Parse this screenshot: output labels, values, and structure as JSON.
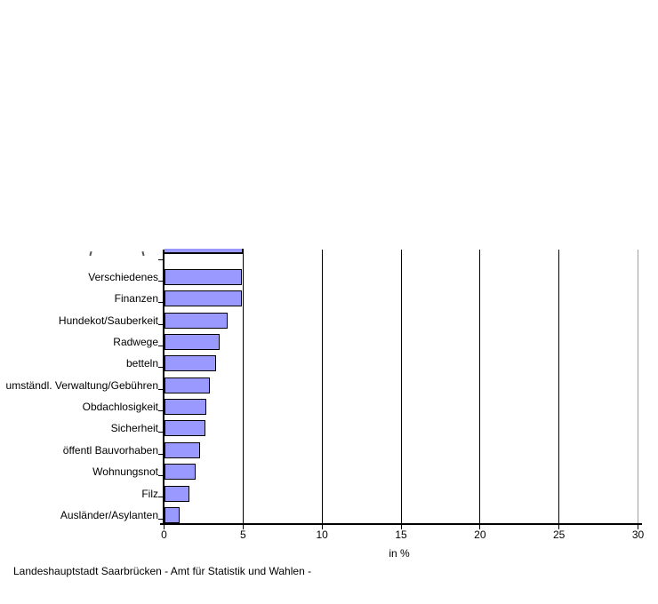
{
  "chart_data": {
    "type": "bar",
    "orientation": "horizontal",
    "title": "",
    "categories": [
      "Verschiedenes",
      "Finanzen",
      "Hundekot/Sauberkeit",
      "Radwege",
      "betteln",
      "umständl. Verwaltung/Gebühren",
      "Obdachlosigkeit",
      "Sicherheit",
      "öffentl Bauvorhaben",
      "Wohnungsnot",
      "Filz",
      "Ausländer/Asylanten"
    ],
    "values": [
      4.9,
      4.9,
      4.0,
      3.5,
      3.3,
      2.9,
      2.7,
      2.6,
      2.3,
      2.0,
      1.6,
      1.0
    ],
    "partial_top_bar": {
      "note": "topmost bar row cut off by image edge, only bottom sliver and label fragments visible",
      "value": 5.0,
      "label_visible": false
    },
    "xlabel": "in %",
    "xlim": [
      0,
      30
    ],
    "xticks": [
      0,
      5,
      10,
      15,
      20,
      25,
      30
    ],
    "grid": "vertical gridlines at each x tick",
    "legend": false,
    "bar_fill": "#9999ff",
    "bar_border": "#000000",
    "right_border_color": "#a0a0a0"
  },
  "footer": {
    "text": "Landeshauptstadt Saarbrücken - Amt für Statistik und Wahlen -"
  }
}
